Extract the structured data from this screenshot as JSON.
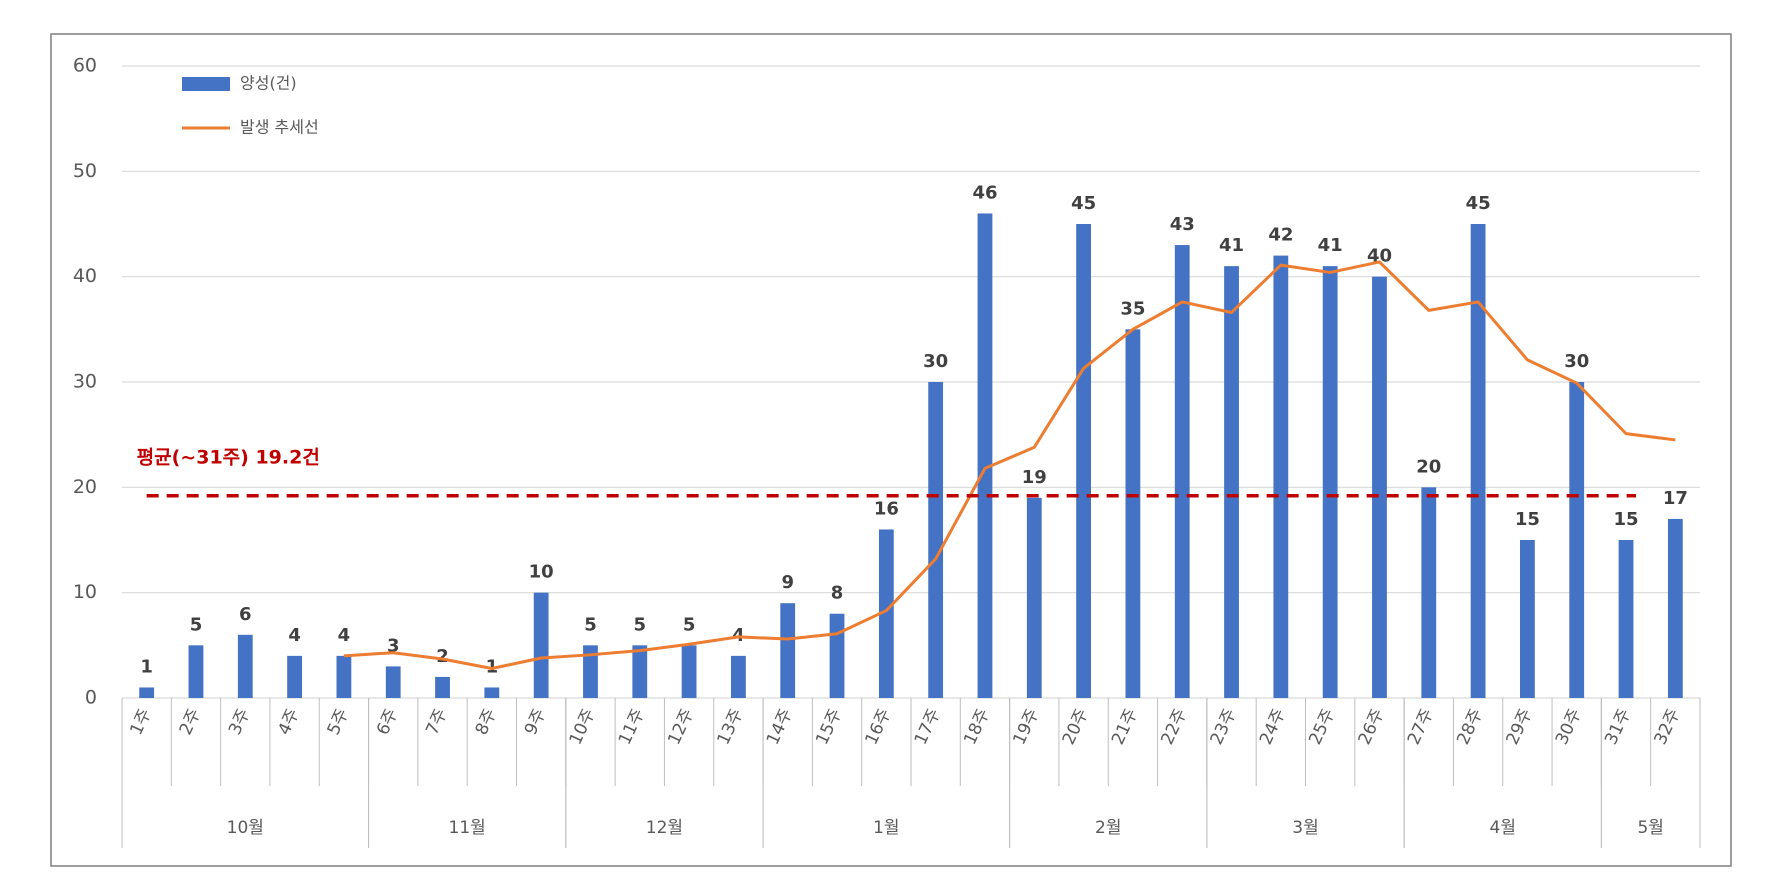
{
  "chart_data": {
    "type": "bar",
    "categories": [
      "1주",
      "2주",
      "3주",
      "4주",
      "5주",
      "6주",
      "7주",
      "8주",
      "9주",
      "10주",
      "11주",
      "12주",
      "13주",
      "14주",
      "15주",
      "16주",
      "17주",
      "18주",
      "19주",
      "20주",
      "21주",
      "22주",
      "23주",
      "24주",
      "25주",
      "26주",
      "27주",
      "28주",
      "29주",
      "30주",
      "31주",
      "32주"
    ],
    "category_groups": [
      {
        "label": "10월",
        "span": 5
      },
      {
        "label": "11월",
        "span": 4
      },
      {
        "label": "12월",
        "span": 4
      },
      {
        "label": "1월",
        "span": 5
      },
      {
        "label": "2월",
        "span": 4
      },
      {
        "label": "3월",
        "span": 4
      },
      {
        "label": "4월",
        "span": 4
      },
      {
        "label": "5월",
        "span": 2
      }
    ],
    "series": [
      {
        "name": "양성(건)",
        "type": "bar",
        "color": "#4472c4",
        "values": [
          1,
          5,
          6,
          4,
          4,
          3,
          2,
          1,
          10,
          5,
          5,
          5,
          4,
          9,
          8,
          16,
          30,
          46,
          19,
          45,
          35,
          43,
          41,
          42,
          41,
          40,
          20,
          45,
          15,
          30,
          15,
          17
        ]
      },
      {
        "name": "발생 추세선",
        "type": "line",
        "color": "#ed7d31",
        "values": [
          null,
          null,
          null,
          null,
          4.0,
          4.3,
          3.7,
          2.8,
          3.8,
          4.1,
          4.5,
          5.1,
          5.8,
          5.6,
          6.1,
          8.3,
          13.2,
          21.8,
          23.8,
          31.3,
          35.0,
          37.6,
          36.6,
          41.1,
          40.4,
          41.4,
          36.8,
          37.6,
          32.1,
          29.9,
          25.1,
          24.5
        ]
      }
    ],
    "reference_line": {
      "value": 19.2,
      "label": "평균(~31주) 19.2건",
      "color": "#c00000"
    },
    "ylim": [
      0,
      60
    ],
    "yticks": [
      0,
      10,
      20,
      30,
      40,
      50,
      60
    ],
    "grid": true,
    "legend": "top-left"
  }
}
